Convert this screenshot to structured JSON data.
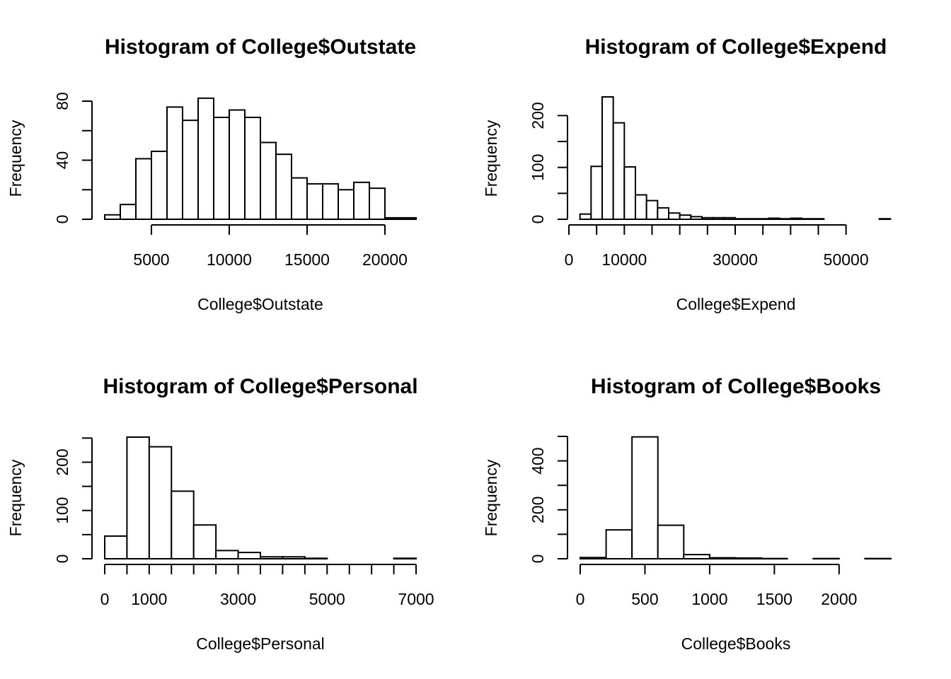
{
  "chart_data": [
    {
      "type": "bar",
      "title": "Histogram of College$Outstate",
      "xlabel": "College$Outstate",
      "ylabel": "Frequency",
      "bin_edges": [
        2000,
        3000,
        4000,
        5000,
        6000,
        7000,
        8000,
        9000,
        10000,
        11000,
        12000,
        13000,
        14000,
        15000,
        16000,
        17000,
        18000,
        19000,
        20000,
        21000,
        22000
      ],
      "values": [
        3,
        10,
        41,
        46,
        76,
        67,
        82,
        69,
        74,
        69,
        52,
        44,
        28,
        24,
        24,
        20,
        25,
        21,
        1,
        1
      ],
      "xticks": [
        5000,
        10000,
        15000,
        20000
      ],
      "yticks": [
        0,
        40,
        80
      ],
      "xlim": [
        2000,
        22000
      ],
      "ylim": [
        0,
        80
      ]
    },
    {
      "type": "bar",
      "title": "Histogram of College$Expend",
      "xlabel": "College$Expend",
      "ylabel": "Frequency",
      "bin_edges": [
        2000,
        4000,
        6000,
        8000,
        10000,
        12000,
        14000,
        16000,
        18000,
        20000,
        22000,
        24000,
        26000,
        28000,
        30000,
        32000,
        34000,
        36000,
        38000,
        40000,
        42000,
        44000,
        46000,
        48000,
        50000,
        52000,
        54000,
        56000,
        58000
      ],
      "values": [
        10,
        102,
        236,
        186,
        101,
        47,
        36,
        22,
        12,
        8,
        5,
        3,
        3,
        3,
        1,
        1,
        1,
        2,
        1,
        2,
        1,
        1,
        0,
        0,
        0,
        0,
        0,
        1
      ],
      "xticks": [
        0,
        10000,
        30000,
        50000
      ],
      "yticks": [
        0,
        100,
        200
      ],
      "xlim": [
        0,
        60000
      ],
      "ylim": [
        0,
        236
      ]
    },
    {
      "type": "bar",
      "title": "Histogram of College$Personal",
      "xlabel": "College$Personal",
      "ylabel": "Frequency",
      "bin_edges": [
        0,
        500,
        1000,
        1500,
        2000,
        2500,
        3000,
        3500,
        4000,
        4500,
        5000,
        5500,
        6000,
        6500,
        7000
      ],
      "values": [
        47,
        252,
        232,
        140,
        70,
        17,
        13,
        4,
        4,
        1,
        0,
        0,
        0,
        1
      ],
      "xticks": [
        0,
        1000,
        3000,
        5000,
        7000
      ],
      "yticks": [
        0,
        100,
        200
      ],
      "xlim": [
        0,
        7000
      ],
      "ylim": [
        0,
        252
      ]
    },
    {
      "type": "bar",
      "title": "Histogram of College$Books",
      "xlabel": "College$Books",
      "ylabel": "Frequency",
      "bin_edges": [
        0,
        200,
        400,
        600,
        800,
        1000,
        1200,
        1400,
        1600,
        1800,
        2000,
        2200,
        2400
      ],
      "values": [
        5,
        118,
        498,
        137,
        17,
        4,
        3,
        1,
        0,
        1,
        0,
        1
      ],
      "xticks": [
        0,
        500,
        1000,
        1500,
        2000
      ],
      "yticks": [
        0,
        200,
        400
      ],
      "xlim": [
        0,
        2400
      ],
      "ylim": [
        0,
        500
      ]
    }
  ]
}
